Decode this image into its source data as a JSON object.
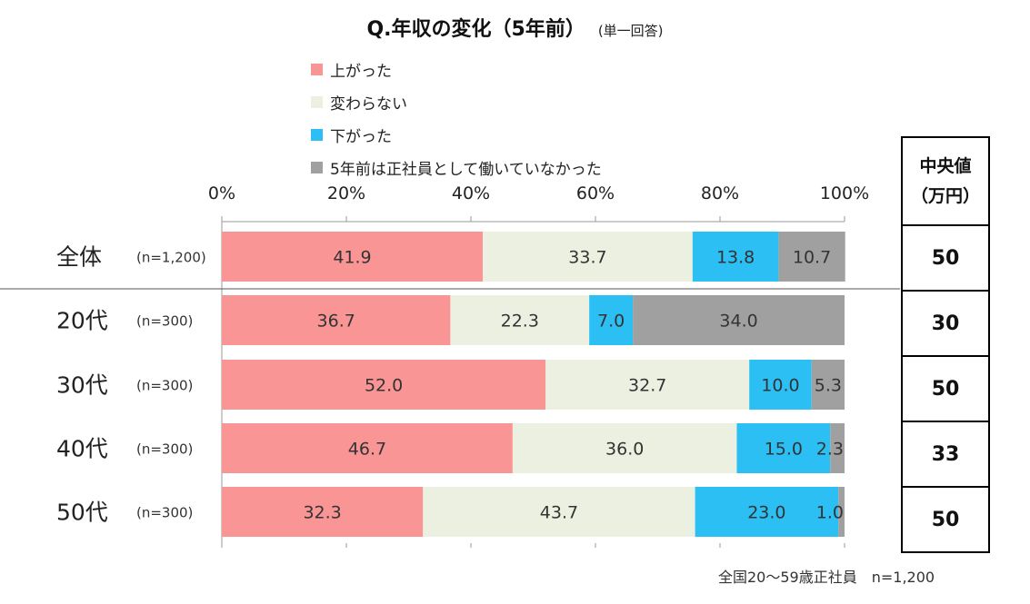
{
  "title": "Q.年収の変化（5年前）",
  "subtitle": "(単一回答)",
  "legend": [
    {
      "label": "上がった",
      "color": "#f99595"
    },
    {
      "label": "変わらない",
      "color": "#ebf0e1"
    },
    {
      "label": "下がった",
      "color": "#2bbff4"
    },
    {
      "label": "5年前は正社員として働いていなかった",
      "color": "#a0a0a0"
    }
  ],
  "chart_data": {
    "type": "bar",
    "orientation": "horizontal",
    "stacked": true,
    "x_ticks": [
      "0%",
      "20%",
      "40%",
      "60%",
      "80%",
      "100%"
    ],
    "xlim": [
      0,
      100
    ],
    "categories": [
      "全体",
      "20代",
      "30代",
      "40代",
      "50代"
    ],
    "sample_sizes": [
      "(n=1,200)",
      "(n=300)",
      "(n=300)",
      "(n=300)",
      "(n=300)"
    ],
    "series": [
      {
        "name": "上がった",
        "values": [
          41.9,
          36.7,
          52.0,
          46.7,
          32.3
        ],
        "labels": [
          "41.9",
          "36.7",
          "52.0",
          "46.7",
          "32.3"
        ]
      },
      {
        "name": "変わらない",
        "values": [
          33.7,
          22.3,
          32.7,
          36.0,
          43.7
        ],
        "labels": [
          "33.7",
          "22.3",
          "32.7",
          "36.0",
          "43.7"
        ]
      },
      {
        "name": "下がった",
        "values": [
          13.8,
          7.0,
          10.0,
          15.0,
          23.0
        ],
        "labels": [
          "13.8",
          "7.0",
          "10.0",
          "15.0",
          "23.0"
        ]
      },
      {
        "name": "5年前は正社員として働いていなかった",
        "values": [
          10.7,
          34.0,
          5.3,
          2.3,
          1.0
        ],
        "labels": [
          "10.7",
          "34.0",
          "5.3",
          "2.3",
          "1.0"
        ]
      }
    ],
    "legend_position": "top",
    "grid": false
  },
  "median_table": {
    "header_line1": "中央値",
    "header_line2": "（万円）",
    "values": [
      "50",
      "30",
      "50",
      "33",
      "50"
    ]
  },
  "note": "全国20～59歳正社員　n=1,200"
}
